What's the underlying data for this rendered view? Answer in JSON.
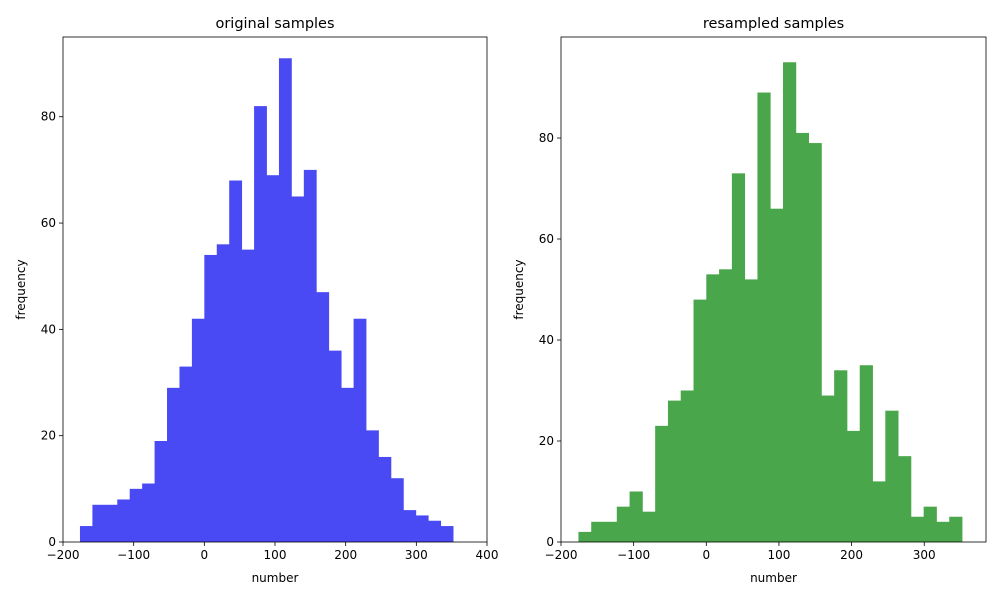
{
  "chart_data": [
    {
      "type": "bar",
      "title": "original samples",
      "xlabel": "number",
      "ylabel": "frequency",
      "xlim": [
        -200,
        400
      ],
      "ylim": [
        0,
        95
      ],
      "xticks": [
        -200,
        -100,
        0,
        100,
        200,
        300,
        400
      ],
      "xtick_labels": [
        "−200",
        "−100",
        "0",
        "100",
        "200",
        "300",
        "400"
      ],
      "yticks": [
        0,
        20,
        40,
        60,
        80
      ],
      "ytick_labels": [
        "0",
        "20",
        "40",
        "60",
        "80"
      ],
      "color": "#4a4af5",
      "bin_start": -176,
      "bin_width": 17.6,
      "values": [
        3,
        7,
        7,
        8,
        10,
        11,
        19,
        29,
        33,
        42,
        54,
        56,
        68,
        55,
        82,
        69,
        91,
        65,
        70,
        47,
        36,
        29,
        42,
        21,
        16,
        12,
        6,
        5,
        4,
        3
      ]
    },
    {
      "type": "bar",
      "title": "resampled samples",
      "xlabel": "number",
      "ylabel": "frequency",
      "xlim": [
        -200,
        385
      ],
      "ylim": [
        0,
        100
      ],
      "xticks": [
        -200,
        -100,
        0,
        100,
        200,
        300
      ],
      "xtick_labels": [
        "−200",
        "−100",
        "0",
        "100",
        "200",
        "300"
      ],
      "yticks": [
        0,
        20,
        40,
        60,
        80
      ],
      "ytick_labels": [
        "0",
        "20",
        "40",
        "60",
        "80"
      ],
      "color": "#4aa64a",
      "bin_start": -176,
      "bin_width": 17.6,
      "values": [
        2,
        4,
        4,
        7,
        10,
        6,
        23,
        28,
        30,
        48,
        53,
        54,
        73,
        52,
        89,
        66,
        95,
        81,
        79,
        29,
        34,
        22,
        35,
        12,
        26,
        17,
        5,
        7,
        4,
        5
      ]
    }
  ]
}
